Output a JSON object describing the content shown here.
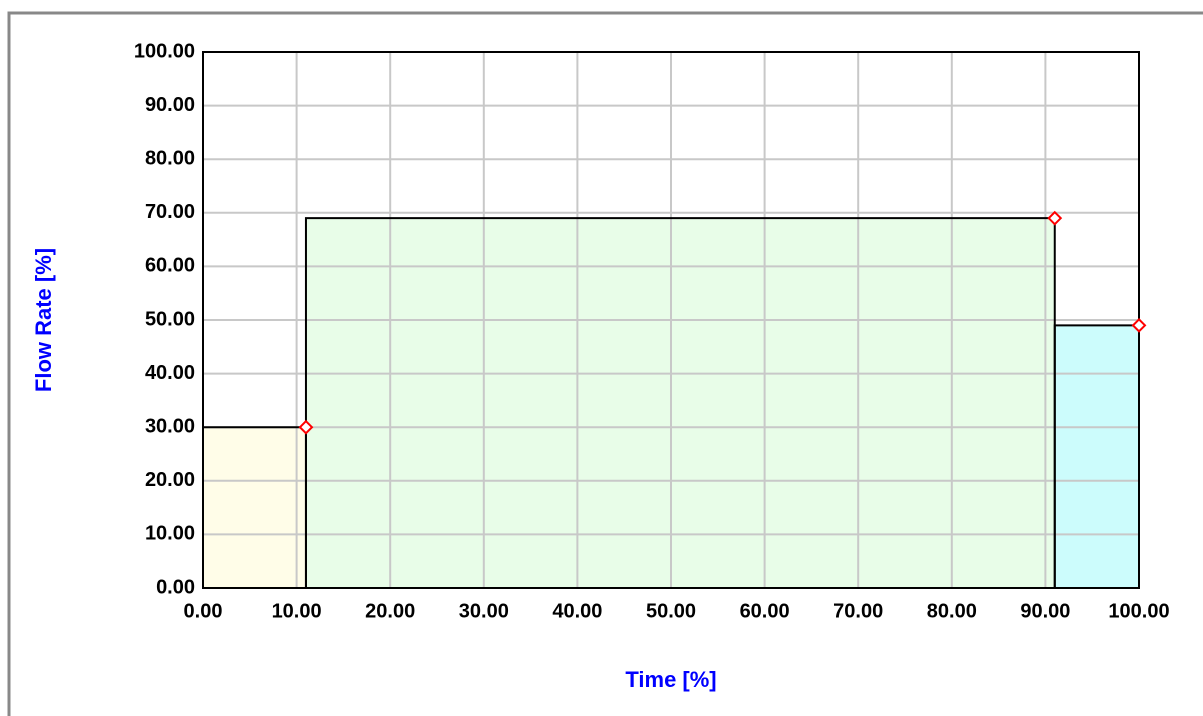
{
  "chart_data": {
    "type": "step",
    "xlabel": "Time [%]",
    "ylabel": "Flow Rate [%]",
    "xlim": [
      0,
      100
    ],
    "ylim": [
      0,
      100
    ],
    "grid": true,
    "xticks": [
      {
        "value": 0,
        "label": "0.00"
      },
      {
        "value": 10,
        "label": "10.00"
      },
      {
        "value": 20,
        "label": "20.00"
      },
      {
        "value": 30,
        "label": "30.00"
      },
      {
        "value": 40,
        "label": "40.00"
      },
      {
        "value": 50,
        "label": "50.00"
      },
      {
        "value": 60,
        "label": "60.00"
      },
      {
        "value": 70,
        "label": "70.00"
      },
      {
        "value": 80,
        "label": "80.00"
      },
      {
        "value": 90,
        "label": "90.00"
      },
      {
        "value": 100,
        "label": "100.00"
      }
    ],
    "yticks": [
      {
        "value": 0,
        "label": "0.00"
      },
      {
        "value": 10,
        "label": "10.00"
      },
      {
        "value": 20,
        "label": "20.00"
      },
      {
        "value": 30,
        "label": "30.00"
      },
      {
        "value": 40,
        "label": "40.00"
      },
      {
        "value": 50,
        "label": "50.00"
      },
      {
        "value": 60,
        "label": "60.00"
      },
      {
        "value": 70,
        "label": "70.00"
      },
      {
        "value": 80,
        "label": "80.00"
      },
      {
        "value": 90,
        "label": "90.00"
      },
      {
        "value": 100,
        "label": "100.00"
      }
    ],
    "marker_color": "#ff0000",
    "segments": [
      {
        "start": 0,
        "end": 11,
        "value": 30,
        "color": "#fffde8"
      },
      {
        "start": 11,
        "end": 91,
        "value": 69,
        "color": "#e8fde8"
      },
      {
        "start": 91,
        "end": 100,
        "value": 49,
        "color": "#ccfcfc"
      }
    ]
  }
}
